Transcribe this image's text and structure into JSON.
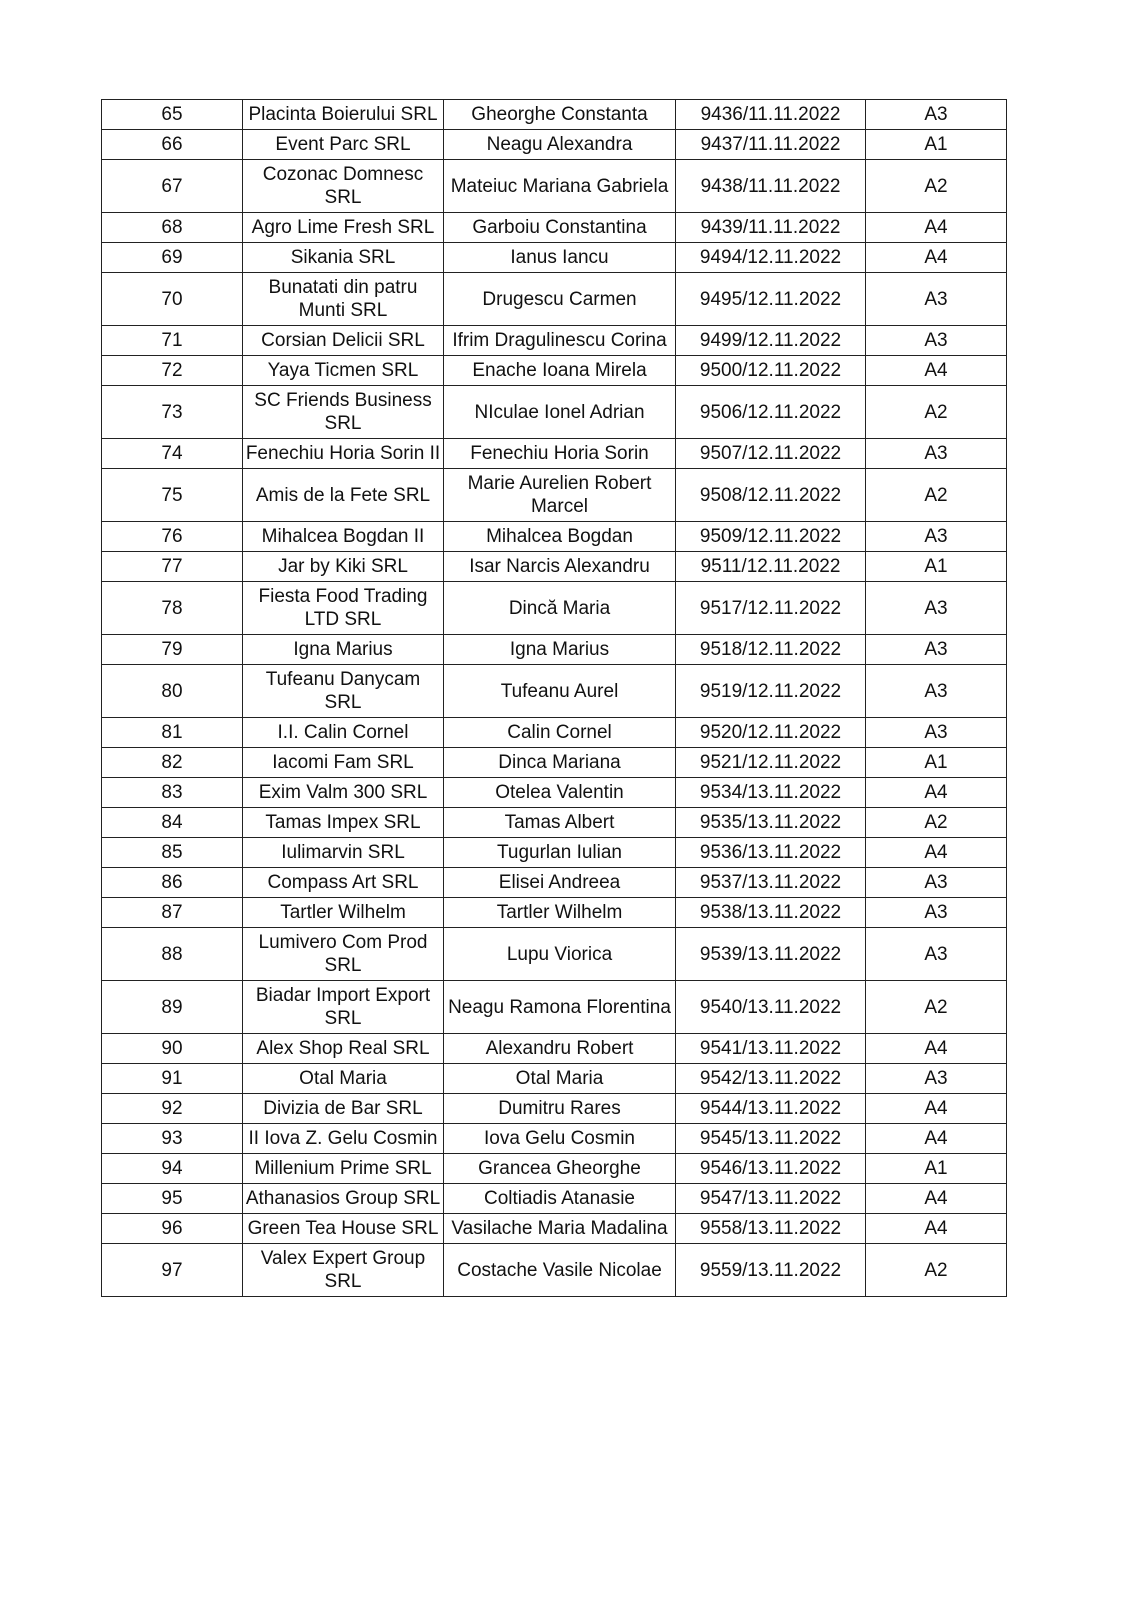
{
  "table": {
    "rows": [
      [
        "65",
        "Placinta Boierului SRL",
        "Gheorghe Constanta",
        "9436/11.11.2022",
        "A3"
      ],
      [
        "66",
        "Event Parc SRL",
        "Neagu Alexandra",
        "9437/11.11.2022",
        "A1"
      ],
      [
        "67",
        "Cozonac Domnesc SRL",
        "Mateiuc Mariana Gabriela",
        "9438/11.11.2022",
        "A2"
      ],
      [
        "68",
        "Agro Lime Fresh SRL",
        "Garboiu Constantina",
        "9439/11.11.2022",
        "A4"
      ],
      [
        "69",
        "Sikania SRL",
        "Ianus Iancu",
        "9494/12.11.2022",
        "A4"
      ],
      [
        "70",
        "Bunatati din patru Munti SRL",
        "Drugescu Carmen",
        "9495/12.11.2022",
        "A3"
      ],
      [
        "71",
        "Corsian Delicii SRL",
        "Ifrim Dragulinescu Corina",
        "9499/12.11.2022",
        "A3"
      ],
      [
        "72",
        "Yaya Ticmen SRL",
        "Enache Ioana Mirela",
        "9500/12.11.2022",
        "A4"
      ],
      [
        "73",
        "SC Friends Business SRL",
        "NIculae Ionel Adrian",
        "9506/12.11.2022",
        "A2"
      ],
      [
        "74",
        "Fenechiu Horia Sorin II",
        "Fenechiu Horia Sorin",
        "9507/12.11.2022",
        "A3"
      ],
      [
        "75",
        "Amis de la Fete SRL",
        "Marie Aurelien Robert Marcel",
        "9508/12.11.2022",
        "A2"
      ],
      [
        "76",
        "Mihalcea Bogdan II",
        "Mihalcea Bogdan",
        "9509/12.11.2022",
        "A3"
      ],
      [
        "77",
        "Jar by Kiki SRL",
        "Isar Narcis Alexandru",
        "9511/12.11.2022",
        "A1"
      ],
      [
        "78",
        "Fiesta Food Trading LTD SRL",
        "Dincă Maria",
        "9517/12.11.2022",
        "A3"
      ],
      [
        "79",
        "Igna Marius",
        "Igna Marius",
        "9518/12.11.2022",
        "A3"
      ],
      [
        "80",
        "Tufeanu Danycam SRL",
        "Tufeanu Aurel",
        "9519/12.11.2022",
        "A3"
      ],
      [
        "81",
        "I.I. Calin Cornel",
        "Calin Cornel",
        "9520/12.11.2022",
        "A3"
      ],
      [
        "82",
        "Iacomi Fam SRL",
        "Dinca Mariana",
        "9521/12.11.2022",
        "A1"
      ],
      [
        "83",
        "Exim Valm 300 SRL",
        "Otelea Valentin",
        "9534/13.11.2022",
        "A4"
      ],
      [
        "84",
        "Tamas Impex SRL",
        "Tamas Albert",
        "9535/13.11.2022",
        "A2"
      ],
      [
        "85",
        "Iulimarvin SRL",
        "Tugurlan Iulian",
        "9536/13.11.2022",
        "A4"
      ],
      [
        "86",
        "Compass Art SRL",
        "Elisei Andreea",
        "9537/13.11.2022",
        "A3"
      ],
      [
        "87",
        "Tartler Wilhelm",
        "Tartler Wilhelm",
        "9538/13.11.2022",
        "A3"
      ],
      [
        "88",
        "Lumivero Com Prod SRL",
        "Lupu Viorica",
        "9539/13.11.2022",
        "A3"
      ],
      [
        "89",
        "Biadar Import Export SRL",
        "Neagu Ramona Florentina",
        "9540/13.11.2022",
        "A2"
      ],
      [
        "90",
        "Alex Shop Real SRL",
        "Alexandru Robert",
        "9541/13.11.2022",
        "A4"
      ],
      [
        "91",
        "Otal Maria",
        "Otal Maria",
        "9542/13.11.2022",
        "A3"
      ],
      [
        "92",
        "Divizia de Bar SRL",
        "Dumitru Rares",
        "9544/13.11.2022",
        "A4"
      ],
      [
        "93",
        "II Iova Z. Gelu Cosmin",
        "Iova Gelu Cosmin",
        "9545/13.11.2022",
        "A4"
      ],
      [
        "94",
        "Millenium Prime SRL",
        "Grancea Gheorghe",
        "9546/13.11.2022",
        "A1"
      ],
      [
        "95",
        "Athanasios Group SRL",
        "Coltiadis Atanasie",
        "9547/13.11.2022",
        "A4"
      ],
      [
        "96",
        "Green Tea House SRL",
        "Vasilache Maria Madalina",
        "9558/13.11.2022",
        "A4"
      ],
      [
        "97",
        "Valex Expert Group SRL",
        "Costache Vasile Nicolae",
        "9559/13.11.2022",
        "A2"
      ]
    ]
  }
}
